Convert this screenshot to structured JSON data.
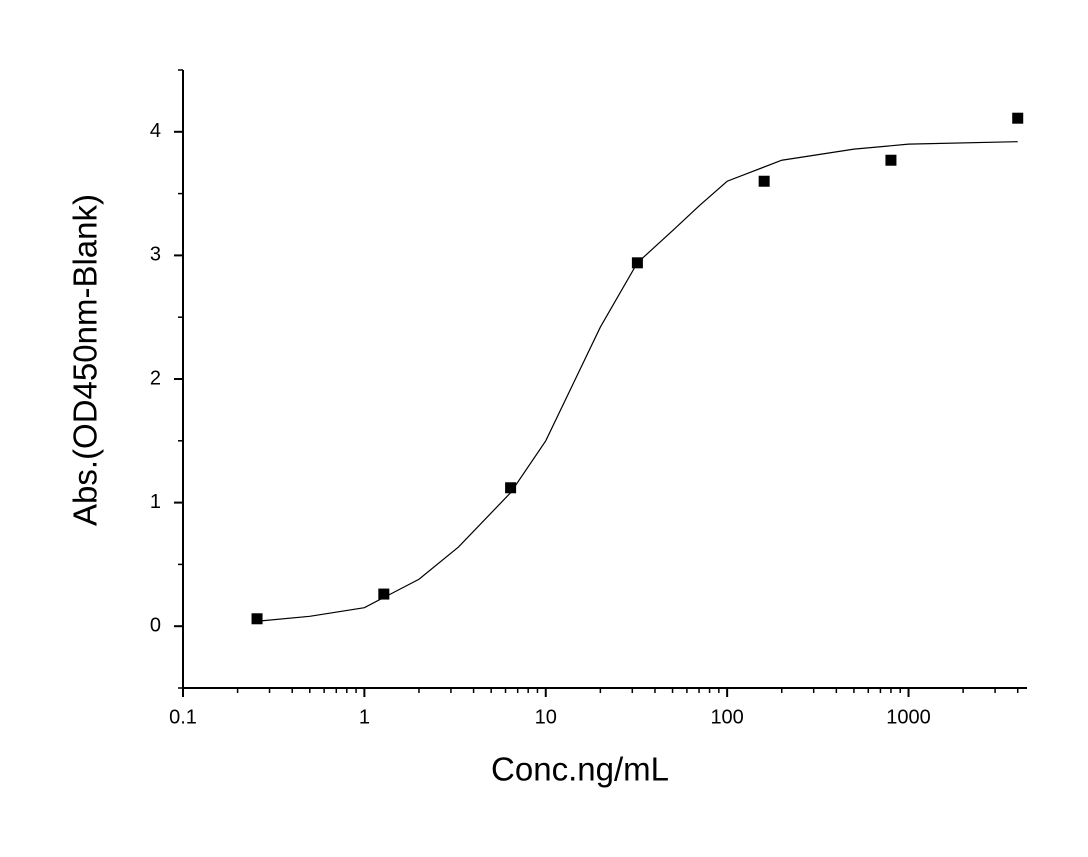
{
  "chart_data": {
    "type": "scatter",
    "xlabel": "Conc.ng/mL",
    "ylabel": "Abs.(OD450nm-Blank)",
    "xscale": "log",
    "xlim": [
      0.1,
      4500
    ],
    "xticks": [
      0.1,
      1,
      10,
      100,
      1000
    ],
    "xminorticks": [
      0.2,
      0.3,
      0.4,
      0.5,
      0.6,
      0.7,
      0.8,
      0.9,
      2,
      3,
      4,
      5,
      6,
      7,
      8,
      9,
      20,
      30,
      40,
      50,
      60,
      70,
      80,
      90,
      200,
      300,
      400,
      500,
      600,
      700,
      800,
      900,
      2000,
      3000,
      4000
    ],
    "ylim": [
      -0.5,
      4.5
    ],
    "yticks": [
      0,
      1,
      2,
      3,
      4
    ],
    "yminorticks": [
      -0.5,
      0.5,
      1.5,
      2.5,
      3.5,
      4.5
    ],
    "grid": false,
    "series": [
      {
        "type": "scatter",
        "color": "#000000",
        "x": [
          0.256,
          1.28,
          6.4,
          32,
          160,
          800,
          4000
        ],
        "values": [
          0.06,
          0.26,
          1.12,
          2.94,
          3.6,
          3.77,
          4.11
        ]
      },
      {
        "type": "line",
        "color": "#000000",
        "x": [
          0.256,
          0.5,
          1,
          2,
          3.3,
          6.4,
          10,
          20,
          32,
          50,
          70,
          100,
          200,
          500,
          1000,
          4000
        ],
        "values": [
          0.04,
          0.08,
          0.15,
          0.38,
          0.64,
          1.08,
          1.5,
          2.42,
          2.94,
          3.2,
          3.4,
          3.6,
          3.77,
          3.86,
          3.9,
          3.92
        ]
      }
    ]
  }
}
